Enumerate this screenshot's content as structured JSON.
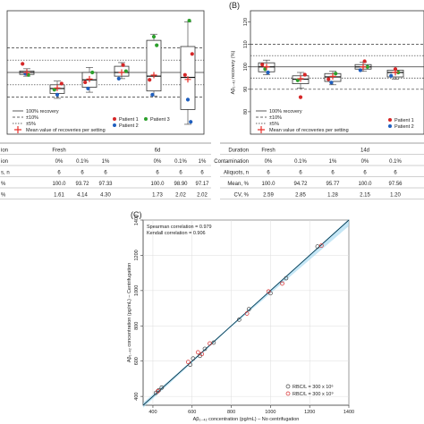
{
  "panel_labels": {
    "b": "(B)",
    "c": "(C)"
  },
  "colors": {
    "red": "#d62728",
    "green": "#2ca02c",
    "blue": "#1f5fbf",
    "fit": "#29a3d9",
    "band": "#9fd6ee",
    "cross": "#e8302a"
  },
  "legend": {
    "recovery": "100% recovery",
    "ten": "±10%",
    "five": "±5%",
    "mean": "Mean value of recoveries per setting",
    "p1": "Patient 1",
    "p2": "Patient 2",
    "p3": "Patient 3"
  },
  "b_ylabel": "Aβ₁₋₄₂ recovery (%)",
  "table_a": {
    "rows": [
      {
        "label": "ion",
        "cells": [
          "Fresh",
          "",
          "",
          "6d",
          "",
          ""
        ]
      },
      {
        "label": "ion",
        "cells": [
          "0%",
          "0.1%",
          "1%",
          "0%",
          "0.1%",
          "1%"
        ]
      },
      {
        "label": "s, n",
        "cells": [
          "6",
          "6",
          "6",
          "6",
          "6",
          "6"
        ]
      },
      {
        "label": "%",
        "cells": [
          "100.0",
          "93.72",
          "97.33",
          "100.0",
          "98.90",
          "97.17"
        ]
      },
      {
        "label": "%",
        "cells": [
          "1.61",
          "4.14",
          "4.30",
          "1.73",
          "2.02",
          "2.02"
        ]
      }
    ]
  },
  "table_b": {
    "rows": [
      {
        "label": "Duration",
        "cells": [
          "Fresh",
          "",
          "",
          "14d",
          ""
        ]
      },
      {
        "label": "Contamination",
        "cells": [
          "0%",
          "0.1%",
          "1%",
          "0%",
          "0.1%"
        ]
      },
      {
        "label": "Aliquots, n",
        "cells": [
          "6",
          "6",
          "6",
          "6",
          "6"
        ]
      },
      {
        "label": "Mean, %",
        "cells": [
          "100.0",
          "94.72",
          "95.77",
          "100.0",
          "97.56"
        ]
      },
      {
        "label": "CV, %",
        "cells": [
          "2.59",
          "2.85",
          "1.28",
          "2.15",
          "1.20"
        ]
      }
    ]
  },
  "chart_data": [
    {
      "panel": "A",
      "type": "box",
      "title": "",
      "ylim": [
        75,
        125
      ],
      "reference_lines": [
        100,
        90,
        110,
        95,
        105
      ],
      "boxes": [
        {
          "q1": 99.2,
          "median": 100.0,
          "q3": 100.6,
          "low": 98.5,
          "high": 101.5
        },
        {
          "q1": 91.5,
          "median": 93.5,
          "q3": 95.0,
          "low": 89.5,
          "high": 96.5
        },
        {
          "q1": 94.0,
          "median": 97.0,
          "q3": 100.0,
          "low": 92.0,
          "high": 102.0
        },
        {
          "q1": 98.5,
          "median": 100.0,
          "q3": 102.5,
          "low": 97.5,
          "high": 104.0
        },
        {
          "q1": 92.5,
          "median": 98.5,
          "q3": 113.0,
          "low": 90.5,
          "high": 115.5
        },
        {
          "q1": 85.0,
          "median": 98.0,
          "q3": 110.5,
          "low": 79.0,
          "high": 120.5
        }
      ],
      "means": [
        100.0,
        93.72,
        97.33,
        100.0,
        98.9,
        97.17
      ],
      "points": [
        {
          "x": 1,
          "y": 103.5,
          "p": "red"
        },
        {
          "x": 1,
          "y": 99.5,
          "p": "blue"
        },
        {
          "x": 1,
          "y": 99.0,
          "p": "green"
        },
        {
          "x": 2,
          "y": 95.5,
          "p": "red"
        },
        {
          "x": 2,
          "y": 93.0,
          "p": "green"
        },
        {
          "x": 2,
          "y": 91.0,
          "p": "blue"
        },
        {
          "x": 3,
          "y": 100.0,
          "p": "green"
        },
        {
          "x": 3,
          "y": 96.0,
          "p": "red"
        },
        {
          "x": 3,
          "y": 93.5,
          "p": "blue"
        },
        {
          "x": 4,
          "y": 103.0,
          "p": "red"
        },
        {
          "x": 4,
          "y": 100.5,
          "p": "green"
        },
        {
          "x": 4,
          "y": 97.5,
          "p": "blue"
        },
        {
          "x": 5,
          "y": 114.5,
          "p": "green"
        },
        {
          "x": 5,
          "y": 111.0,
          "p": "green"
        },
        {
          "x": 5,
          "y": 97.0,
          "p": "red"
        },
        {
          "x": 5,
          "y": 91.0,
          "p": "blue"
        },
        {
          "x": 6,
          "y": 121.0,
          "p": "green"
        },
        {
          "x": 6,
          "y": 107.5,
          "p": "red"
        },
        {
          "x": 6,
          "y": 99.0,
          "p": "red"
        },
        {
          "x": 6,
          "y": 89.0,
          "p": "blue"
        },
        {
          "x": 6,
          "y": 80.0,
          "p": "blue"
        }
      ]
    },
    {
      "panel": "B",
      "type": "box",
      "title": "",
      "ylabel": "Aβ₁₋₄₂ recovery (%)",
      "ylim": [
        70,
        125
      ],
      "yticks": [
        80,
        90,
        100,
        110,
        120
      ],
      "reference_lines": [
        100,
        90,
        110,
        95,
        105
      ],
      "boxes": [
        {
          "q1": 97.8,
          "median": 100.0,
          "q3": 101.8,
          "low": 96.5,
          "high": 103.0
        },
        {
          "q1": 92.5,
          "median": 94.5,
          "q3": 96.0,
          "low": 90.5,
          "high": 97.5
        },
        {
          "q1": 93.5,
          "median": 95.5,
          "q3": 97.0,
          "low": 92.0,
          "high": 98.0
        },
        {
          "q1": 99.0,
          "median": 100.0,
          "q3": 101.0,
          "low": 98.0,
          "high": 102.0
        },
        {
          "q1": 95.5,
          "median": 97.5,
          "q3": 98.5,
          "low": 94.5,
          "high": 100.0
        }
      ],
      "means": [
        100.0,
        94.72,
        95.77,
        100.0,
        97.56
      ],
      "points": [
        {
          "x": 1,
          "y": 101.0,
          "p": "red"
        },
        {
          "x": 1,
          "y": 99.0,
          "p": "green"
        },
        {
          "x": 1,
          "y": 97.5,
          "p": "blue"
        },
        {
          "x": 2,
          "y": 96.5,
          "p": "red"
        },
        {
          "x": 2,
          "y": 94.0,
          "p": "green"
        },
        {
          "x": 2,
          "y": 86.5,
          "p": "red"
        },
        {
          "x": 3,
          "y": 97.0,
          "p": "green"
        },
        {
          "x": 3,
          "y": 94.5,
          "p": "red"
        },
        {
          "x": 3,
          "y": 93.0,
          "p": "blue"
        },
        {
          "x": 4,
          "y": 102.5,
          "p": "red"
        },
        {
          "x": 4,
          "y": 100.0,
          "p": "green"
        },
        {
          "x": 4,
          "y": 98.5,
          "p": "blue"
        },
        {
          "x": 5,
          "y": 99.0,
          "p": "red"
        },
        {
          "x": 5,
          "y": 97.5,
          "p": "green"
        },
        {
          "x": 5,
          "y": 96.0,
          "p": "blue"
        }
      ]
    },
    {
      "panel": "C",
      "type": "scatter",
      "title": "",
      "xlabel": "Aβ₁₋₄₂ concentration (pg/mL) – No centrifugation",
      "ylabel": "Aβ₁₋₄₂ concentration (pg/mL) – Centrifugation",
      "xlim": [
        350,
        1400
      ],
      "ylim": [
        350,
        1400
      ],
      "xticks": [
        400,
        600,
        800,
        1000,
        1200,
        1400
      ],
      "yticks": [
        400,
        600,
        800,
        1000,
        1200,
        1400
      ],
      "annotations": [
        "Spearman correlation = 0.979",
        "Kendall correlation = 0.906"
      ],
      "legend": [
        "RBC/L = 300 x 10⁶",
        "RBC/L = 300 x 10⁹"
      ],
      "fit": {
        "slope": 1.0,
        "intercept": 0
      },
      "series": [
        {
          "name": "RBC/L = 300 x 10⁶",
          "color": "#444444",
          "points": [
            [
              415,
              420
            ],
            [
              430,
              435
            ],
            [
              445,
              450
            ],
            [
              590,
              580
            ],
            [
              605,
              615
            ],
            [
              640,
              630
            ],
            [
              665,
              670
            ],
            [
              710,
              705
            ],
            [
              840,
              835
            ],
            [
              890,
              895
            ],
            [
              1000,
              985
            ],
            [
              1080,
              1070
            ],
            [
              1240,
              1250
            ]
          ]
        },
        {
          "name": "RBC/L = 300 x 10⁹",
          "color": "#d62728",
          "points": [
            [
              425,
              430
            ],
            [
              580,
              595
            ],
            [
              630,
              650
            ],
            [
              650,
              640
            ],
            [
              690,
              700
            ],
            [
              880,
              870
            ],
            [
              990,
              995
            ],
            [
              1060,
              1040
            ],
            [
              1260,
              1255
            ]
          ]
        }
      ]
    }
  ]
}
